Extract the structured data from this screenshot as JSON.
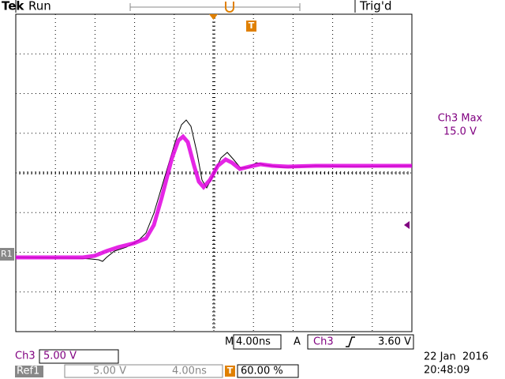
{
  "header": {
    "brand": "Tek",
    "status": "Run",
    "trigger_status": "Trig'd"
  },
  "markers": {
    "trigger_position": "T",
    "ref": "R1"
  },
  "measurement": {
    "label": "Ch3 Max",
    "value": "15.0 V"
  },
  "timebase": {
    "prefix": "M",
    "value": "4.00ns",
    "trigger_source": "A",
    "trigger_channel": "Ch3",
    "trigger_level": "3.60 V"
  },
  "channel": {
    "name": "Ch3",
    "scale": "5.00 V"
  },
  "reference": {
    "name": "Ref1",
    "scale": "5.00 V",
    "time": "4.00ns",
    "trigger_marker": "T",
    "position": "60.00 %"
  },
  "timestamp": {
    "date": "22 Jan  2016",
    "time": "20:48:09"
  }
}
